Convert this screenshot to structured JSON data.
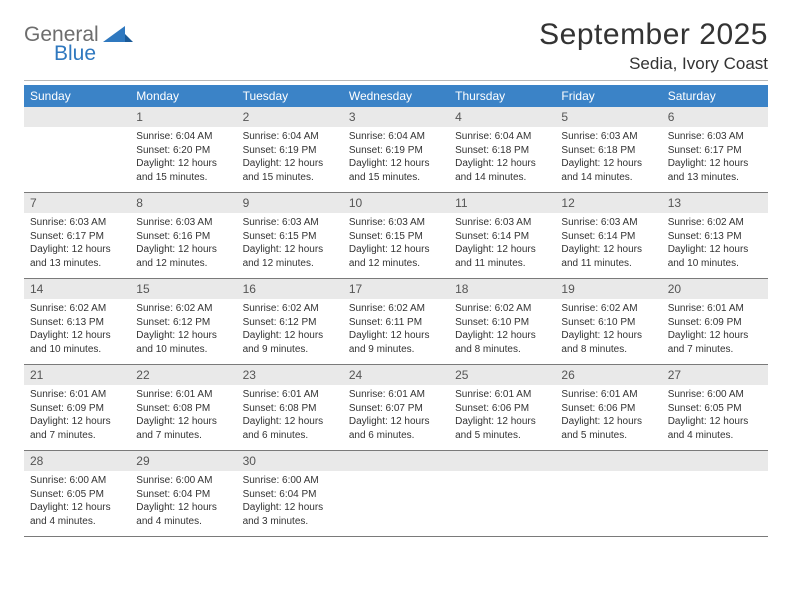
{
  "brand": {
    "word1": "General",
    "word2": "Blue",
    "icon_color": "#2f78bf",
    "text_gray": "#6d6d6d"
  },
  "header": {
    "month_title": "September 2025",
    "location": "Sedia, Ivory Coast"
  },
  "colors": {
    "header_bg": "#3b83c7",
    "header_fg": "#ffffff",
    "daynum_bg": "#e9e9e9",
    "daynum_fg": "#555555",
    "body_fg": "#333333",
    "row_border": "#7a7a7a",
    "top_rule": "#b7b7b7",
    "page_bg": "#ffffff"
  },
  "typography": {
    "month_title_pt": 30,
    "location_pt": 17,
    "weekday_pt": 12,
    "daynum_pt": 12,
    "body_pt": 10
  },
  "weekdays": [
    "Sunday",
    "Monday",
    "Tuesday",
    "Wednesday",
    "Thursday",
    "Friday",
    "Saturday"
  ],
  "weeks": [
    [
      {
        "n": "",
        "sunrise": "",
        "sunset": "",
        "daylight1": "",
        "daylight2": ""
      },
      {
        "n": "1",
        "sunrise": "Sunrise: 6:04 AM",
        "sunset": "Sunset: 6:20 PM",
        "daylight1": "Daylight: 12 hours",
        "daylight2": "and 15 minutes."
      },
      {
        "n": "2",
        "sunrise": "Sunrise: 6:04 AM",
        "sunset": "Sunset: 6:19 PM",
        "daylight1": "Daylight: 12 hours",
        "daylight2": "and 15 minutes."
      },
      {
        "n": "3",
        "sunrise": "Sunrise: 6:04 AM",
        "sunset": "Sunset: 6:19 PM",
        "daylight1": "Daylight: 12 hours",
        "daylight2": "and 15 minutes."
      },
      {
        "n": "4",
        "sunrise": "Sunrise: 6:04 AM",
        "sunset": "Sunset: 6:18 PM",
        "daylight1": "Daylight: 12 hours",
        "daylight2": "and 14 minutes."
      },
      {
        "n": "5",
        "sunrise": "Sunrise: 6:03 AM",
        "sunset": "Sunset: 6:18 PM",
        "daylight1": "Daylight: 12 hours",
        "daylight2": "and 14 minutes."
      },
      {
        "n": "6",
        "sunrise": "Sunrise: 6:03 AM",
        "sunset": "Sunset: 6:17 PM",
        "daylight1": "Daylight: 12 hours",
        "daylight2": "and 13 minutes."
      }
    ],
    [
      {
        "n": "7",
        "sunrise": "Sunrise: 6:03 AM",
        "sunset": "Sunset: 6:17 PM",
        "daylight1": "Daylight: 12 hours",
        "daylight2": "and 13 minutes."
      },
      {
        "n": "8",
        "sunrise": "Sunrise: 6:03 AM",
        "sunset": "Sunset: 6:16 PM",
        "daylight1": "Daylight: 12 hours",
        "daylight2": "and 12 minutes."
      },
      {
        "n": "9",
        "sunrise": "Sunrise: 6:03 AM",
        "sunset": "Sunset: 6:15 PM",
        "daylight1": "Daylight: 12 hours",
        "daylight2": "and 12 minutes."
      },
      {
        "n": "10",
        "sunrise": "Sunrise: 6:03 AM",
        "sunset": "Sunset: 6:15 PM",
        "daylight1": "Daylight: 12 hours",
        "daylight2": "and 12 minutes."
      },
      {
        "n": "11",
        "sunrise": "Sunrise: 6:03 AM",
        "sunset": "Sunset: 6:14 PM",
        "daylight1": "Daylight: 12 hours",
        "daylight2": "and 11 minutes."
      },
      {
        "n": "12",
        "sunrise": "Sunrise: 6:03 AM",
        "sunset": "Sunset: 6:14 PM",
        "daylight1": "Daylight: 12 hours",
        "daylight2": "and 11 minutes."
      },
      {
        "n": "13",
        "sunrise": "Sunrise: 6:02 AM",
        "sunset": "Sunset: 6:13 PM",
        "daylight1": "Daylight: 12 hours",
        "daylight2": "and 10 minutes."
      }
    ],
    [
      {
        "n": "14",
        "sunrise": "Sunrise: 6:02 AM",
        "sunset": "Sunset: 6:13 PM",
        "daylight1": "Daylight: 12 hours",
        "daylight2": "and 10 minutes."
      },
      {
        "n": "15",
        "sunrise": "Sunrise: 6:02 AM",
        "sunset": "Sunset: 6:12 PM",
        "daylight1": "Daylight: 12 hours",
        "daylight2": "and 10 minutes."
      },
      {
        "n": "16",
        "sunrise": "Sunrise: 6:02 AM",
        "sunset": "Sunset: 6:12 PM",
        "daylight1": "Daylight: 12 hours",
        "daylight2": "and 9 minutes."
      },
      {
        "n": "17",
        "sunrise": "Sunrise: 6:02 AM",
        "sunset": "Sunset: 6:11 PM",
        "daylight1": "Daylight: 12 hours",
        "daylight2": "and 9 minutes."
      },
      {
        "n": "18",
        "sunrise": "Sunrise: 6:02 AM",
        "sunset": "Sunset: 6:10 PM",
        "daylight1": "Daylight: 12 hours",
        "daylight2": "and 8 minutes."
      },
      {
        "n": "19",
        "sunrise": "Sunrise: 6:02 AM",
        "sunset": "Sunset: 6:10 PM",
        "daylight1": "Daylight: 12 hours",
        "daylight2": "and 8 minutes."
      },
      {
        "n": "20",
        "sunrise": "Sunrise: 6:01 AM",
        "sunset": "Sunset: 6:09 PM",
        "daylight1": "Daylight: 12 hours",
        "daylight2": "and 7 minutes."
      }
    ],
    [
      {
        "n": "21",
        "sunrise": "Sunrise: 6:01 AM",
        "sunset": "Sunset: 6:09 PM",
        "daylight1": "Daylight: 12 hours",
        "daylight2": "and 7 minutes."
      },
      {
        "n": "22",
        "sunrise": "Sunrise: 6:01 AM",
        "sunset": "Sunset: 6:08 PM",
        "daylight1": "Daylight: 12 hours",
        "daylight2": "and 7 minutes."
      },
      {
        "n": "23",
        "sunrise": "Sunrise: 6:01 AM",
        "sunset": "Sunset: 6:08 PM",
        "daylight1": "Daylight: 12 hours",
        "daylight2": "and 6 minutes."
      },
      {
        "n": "24",
        "sunrise": "Sunrise: 6:01 AM",
        "sunset": "Sunset: 6:07 PM",
        "daylight1": "Daylight: 12 hours",
        "daylight2": "and 6 minutes."
      },
      {
        "n": "25",
        "sunrise": "Sunrise: 6:01 AM",
        "sunset": "Sunset: 6:06 PM",
        "daylight1": "Daylight: 12 hours",
        "daylight2": "and 5 minutes."
      },
      {
        "n": "26",
        "sunrise": "Sunrise: 6:01 AM",
        "sunset": "Sunset: 6:06 PM",
        "daylight1": "Daylight: 12 hours",
        "daylight2": "and 5 minutes."
      },
      {
        "n": "27",
        "sunrise": "Sunrise: 6:00 AM",
        "sunset": "Sunset: 6:05 PM",
        "daylight1": "Daylight: 12 hours",
        "daylight2": "and 4 minutes."
      }
    ],
    [
      {
        "n": "28",
        "sunrise": "Sunrise: 6:00 AM",
        "sunset": "Sunset: 6:05 PM",
        "daylight1": "Daylight: 12 hours",
        "daylight2": "and 4 minutes."
      },
      {
        "n": "29",
        "sunrise": "Sunrise: 6:00 AM",
        "sunset": "Sunset: 6:04 PM",
        "daylight1": "Daylight: 12 hours",
        "daylight2": "and 4 minutes."
      },
      {
        "n": "30",
        "sunrise": "Sunrise: 6:00 AM",
        "sunset": "Sunset: 6:04 PM",
        "daylight1": "Daylight: 12 hours",
        "daylight2": "and 3 minutes."
      },
      {
        "n": "",
        "sunrise": "",
        "sunset": "",
        "daylight1": "",
        "daylight2": ""
      },
      {
        "n": "",
        "sunrise": "",
        "sunset": "",
        "daylight1": "",
        "daylight2": ""
      },
      {
        "n": "",
        "sunrise": "",
        "sunset": "",
        "daylight1": "",
        "daylight2": ""
      },
      {
        "n": "",
        "sunrise": "",
        "sunset": "",
        "daylight1": "",
        "daylight2": ""
      }
    ]
  ]
}
